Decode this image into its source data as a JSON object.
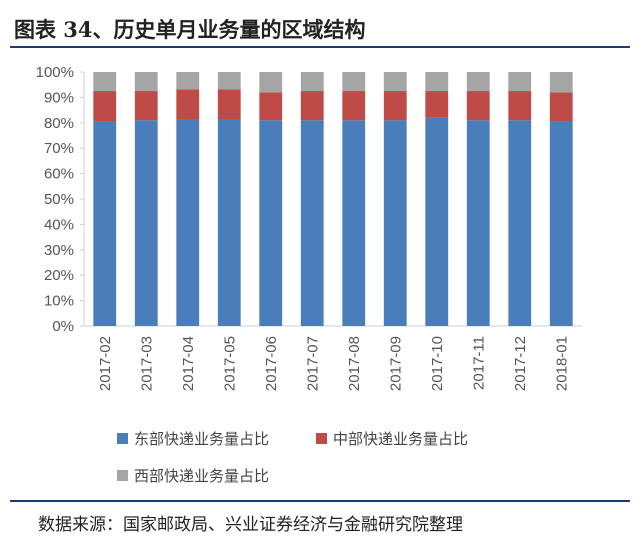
{
  "title": "图表 34、历史单月业务量的区域结构",
  "source": "数据来源：国家邮政局、兴业证券经济与金融研究院整理",
  "chart_data": {
    "type": "bar",
    "stacked": true,
    "title": "",
    "categories": [
      "2017-02",
      "2017-03",
      "2017-04",
      "2017-05",
      "2017-06",
      "2017-07",
      "2017-08",
      "2017-09",
      "2017-10",
      "2017-11",
      "2017-12",
      "2018-01"
    ],
    "series": [
      {
        "name": "东部快递业务量占比",
        "color": "#4a7ebb",
        "values": [
          80.7,
          81.0,
          81.5,
          81.5,
          81.0,
          81.0,
          81.0,
          81.0,
          82.0,
          81.0,
          81.0,
          80.7
        ]
      },
      {
        "name": "中部快递业务量占比",
        "color": "#be4b48",
        "values": [
          11.8,
          11.5,
          11.7,
          11.7,
          11.0,
          11.5,
          11.5,
          11.5,
          10.5,
          11.5,
          11.5,
          11.3
        ]
      },
      {
        "name": "西部快递业务量占比",
        "color": "#a5a5a5",
        "values": [
          7.5,
          7.5,
          6.8,
          6.8,
          8.0,
          7.5,
          7.5,
          7.5,
          7.5,
          7.5,
          7.5,
          8.0
        ]
      }
    ],
    "yticks": [
      "0%",
      "10%",
      "20%",
      "30%",
      "40%",
      "50%",
      "60%",
      "70%",
      "80%",
      "90%",
      "100%"
    ],
    "ylim": [
      0,
      100
    ],
    "legend_position": "bottom"
  }
}
